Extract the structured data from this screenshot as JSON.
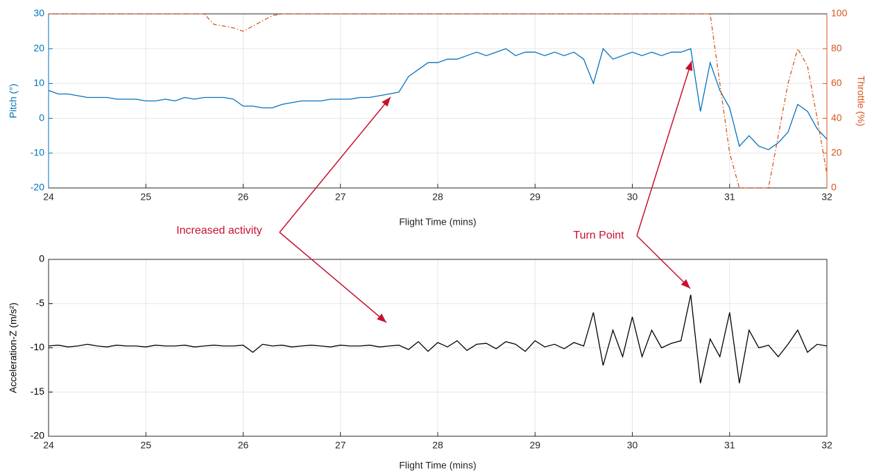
{
  "chart_data": [
    {
      "type": "line",
      "xlabel": "Flight Time (mins)",
      "ylabel": "Pitch (°)",
      "y2label": "Throttle (%)",
      "x": [
        24,
        24.1,
        24.2,
        24.3,
        24.4,
        24.5,
        24.6,
        24.7,
        24.8,
        24.9,
        25,
        25.1,
        25.2,
        25.3,
        25.4,
        25.5,
        25.6,
        25.7,
        25.8,
        25.9,
        26,
        26.1,
        26.2,
        26.3,
        26.4,
        26.5,
        26.6,
        26.7,
        26.8,
        26.9,
        27,
        27.1,
        27.2,
        27.3,
        27.4,
        27.5,
        27.6,
        27.7,
        27.8,
        27.9,
        28,
        28.1,
        28.2,
        28.3,
        28.4,
        28.5,
        28.6,
        28.7,
        28.8,
        28.9,
        29,
        29.1,
        29.2,
        29.3,
        29.4,
        29.5,
        29.6,
        29.7,
        29.8,
        29.9,
        30,
        30.1,
        30.2,
        30.3,
        30.4,
        30.5,
        30.6,
        30.7,
        30.8,
        30.9,
        31,
        31.1,
        31.2,
        31.3,
        31.4,
        31.5,
        31.6,
        31.7,
        31.8,
        31.9,
        32
      ],
      "series": [
        {
          "name": "Pitch",
          "color": "#0072bd",
          "linestyle": "solid",
          "values": [
            8,
            7,
            7,
            6.5,
            6,
            6,
            6,
            5.5,
            5.5,
            5.5,
            5,
            5,
            5.5,
            5,
            6,
            5.5,
            6,
            6,
            6,
            5.5,
            3.5,
            3.5,
            3,
            3,
            4,
            4.5,
            5,
            5,
            5,
            5.5,
            5.5,
            5.5,
            6,
            6,
            6.5,
            7,
            7.5,
            12,
            14,
            16,
            16,
            17,
            17,
            18,
            19,
            18,
            19,
            20,
            18,
            19,
            19,
            18,
            19,
            18,
            19,
            17,
            10,
            20,
            17,
            18,
            19,
            18,
            19,
            18,
            19,
            19,
            20,
            2,
            16,
            8,
            3,
            -8,
            -5,
            -8,
            -9,
            -7,
            -4,
            4,
            2,
            -3,
            -6
          ]
        },
        {
          "name": "Throttle",
          "color": "#d95319",
          "linestyle": "dashdot",
          "axis": "y2",
          "values": [
            100,
            100,
            100,
            100,
            100,
            100,
            100,
            100,
            100,
            100,
            100,
            100,
            100,
            100,
            100,
            100,
            100,
            94,
            93,
            92,
            90,
            93,
            96,
            99,
            100,
            100,
            100,
            100,
            100,
            100,
            100,
            100,
            100,
            100,
            100,
            100,
            100,
            100,
            100,
            100,
            100,
            100,
            100,
            100,
            100,
            100,
            100,
            100,
            100,
            100,
            100,
            100,
            100,
            100,
            100,
            100,
            100,
            100,
            100,
            100,
            100,
            100,
            100,
            100,
            100,
            100,
            100,
            100,
            100,
            60,
            20,
            0,
            0,
            0,
            0,
            30,
            60,
            80,
            70,
            40,
            8
          ]
        }
      ],
      "xlim": [
        24,
        32
      ],
      "xticks": [
        24,
        25,
        26,
        27,
        28,
        29,
        30,
        31,
        32
      ],
      "ylim": [
        -20,
        30
      ],
      "yticks": [
        -20,
        -10,
        0,
        10,
        20,
        30
      ],
      "y2lim": [
        0,
        100
      ],
      "y2ticks": [
        0,
        20,
        40,
        60,
        80,
        100
      ],
      "grid": true
    },
    {
      "type": "line",
      "xlabel": "Flight Time (mins)",
      "ylabel": "Acceleration-Z (m/s²)",
      "x": [
        24,
        24.1,
        24.2,
        24.3,
        24.4,
        24.5,
        24.6,
        24.7,
        24.8,
        24.9,
        25,
        25.1,
        25.2,
        25.3,
        25.4,
        25.5,
        25.6,
        25.7,
        25.8,
        25.9,
        26,
        26.1,
        26.2,
        26.3,
        26.4,
        26.5,
        26.6,
        26.7,
        26.8,
        26.9,
        27,
        27.1,
        27.2,
        27.3,
        27.4,
        27.5,
        27.6,
        27.7,
        27.8,
        27.9,
        28,
        28.1,
        28.2,
        28.3,
        28.4,
        28.5,
        28.6,
        28.7,
        28.8,
        28.9,
        29,
        29.1,
        29.2,
        29.3,
        29.4,
        29.5,
        29.6,
        29.7,
        29.8,
        29.9,
        30,
        30.1,
        30.2,
        30.3,
        30.4,
        30.5,
        30.6,
        30.7,
        30.8,
        30.9,
        31,
        31.1,
        31.2,
        31.3,
        31.4,
        31.5,
        31.6,
        31.7,
        31.8,
        31.9,
        32
      ],
      "series": [
        {
          "name": "Acceleration-Z",
          "color": "#000000",
          "linestyle": "solid",
          "values": [
            -9.8,
            -9.7,
            -9.9,
            -9.8,
            -9.6,
            -9.8,
            -9.9,
            -9.7,
            -9.8,
            -9.8,
            -9.9,
            -9.7,
            -9.8,
            -9.8,
            -9.7,
            -9.9,
            -9.8,
            -9.7,
            -9.8,
            -9.8,
            -9.7,
            -10.5,
            -9.6,
            -9.8,
            -9.7,
            -9.9,
            -9.8,
            -9.7,
            -9.8,
            -9.9,
            -9.7,
            -9.8,
            -9.8,
            -9.7,
            -9.9,
            -9.8,
            -9.7,
            -10.2,
            -9.3,
            -10.4,
            -9.4,
            -9.9,
            -9.2,
            -10.3,
            -9.6,
            -9.5,
            -10.1,
            -9.3,
            -9.6,
            -10.4,
            -9.2,
            -9.9,
            -9.6,
            -10.1,
            -9.4,
            -9.8,
            -6,
            -12,
            -8,
            -11,
            -6.5,
            -11,
            -8,
            -10,
            -9.5,
            -9.2,
            -4,
            -14,
            -9,
            -11,
            -6,
            -14,
            -8,
            -10,
            -9.7,
            -11,
            -9.6,
            -8,
            -10.5,
            -9.6,
            -9.8
          ]
        }
      ],
      "xlim": [
        24,
        32
      ],
      "xticks": [
        24,
        25,
        26,
        27,
        28,
        29,
        30,
        31,
        32
      ],
      "ylim": [
        -20,
        0
      ],
      "yticks": [
        -20,
        -15,
        -10,
        -5,
        0
      ],
      "grid": true
    }
  ],
  "annotations": [
    "Increased activity",
    "Turn Point"
  ]
}
